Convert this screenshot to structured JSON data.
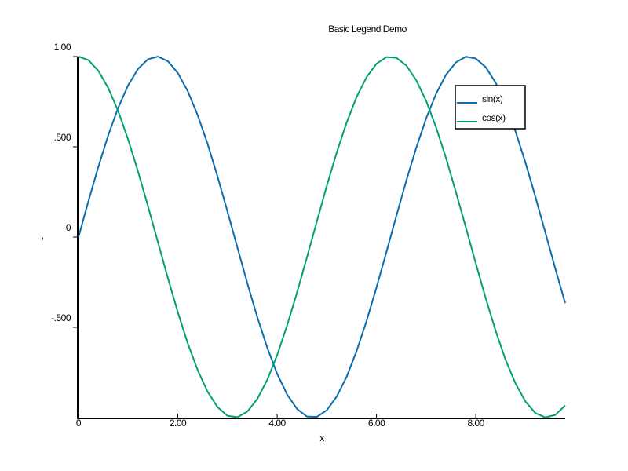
{
  "chart_data": {
    "type": "line",
    "title": "Basic Legend Demo",
    "xlabel": "x",
    "ylabel": ",",
    "x": [
      0,
      0.2,
      0.4,
      0.6,
      0.8,
      1.0,
      1.2,
      1.4,
      1.6,
      1.8,
      2.0,
      2.2,
      2.4,
      2.6,
      2.8,
      3.0,
      3.2,
      3.4,
      3.6,
      3.8,
      4.0,
      4.2,
      4.4,
      4.6,
      4.8,
      5.0,
      5.2,
      5.4,
      5.6,
      5.8,
      6.0,
      6.2,
      6.4,
      6.6,
      6.8,
      7.0,
      7.2,
      7.4,
      7.6,
      7.8,
      8.0,
      8.2,
      8.4,
      8.6,
      8.8,
      9.0,
      9.2,
      9.4,
      9.6,
      9.8
    ],
    "series": [
      {
        "name": "sin(x)",
        "color": "#0a6eab",
        "values": [
          0,
          0.199,
          0.389,
          0.565,
          0.717,
          0.841,
          0.932,
          0.985,
          1.0,
          0.974,
          0.909,
          0.808,
          0.675,
          0.516,
          0.335,
          0.141,
          -0.058,
          -0.256,
          -0.443,
          -0.612,
          -0.757,
          -0.872,
          -0.952,
          -0.994,
          -0.996,
          -0.959,
          -0.883,
          -0.773,
          -0.631,
          -0.465,
          -0.279,
          -0.083,
          0.117,
          0.312,
          0.494,
          0.657,
          0.794,
          0.899,
          0.968,
          0.999,
          0.989,
          0.941,
          0.855,
          0.735,
          0.585,
          0.412,
          0.223,
          0.025,
          -0.174,
          -0.366
        ]
      },
      {
        "name": "cos(x)",
        "color": "#00a070",
        "values": [
          1.0,
          0.98,
          0.921,
          0.825,
          0.697,
          0.54,
          0.362,
          0.17,
          -0.029,
          -0.227,
          -0.416,
          -0.589,
          -0.737,
          -0.857,
          -0.942,
          -0.99,
          -0.998,
          -0.967,
          -0.897,
          -0.791,
          -0.654,
          -0.49,
          -0.307,
          -0.112,
          0.087,
          0.284,
          0.469,
          0.635,
          0.776,
          0.886,
          0.96,
          0.997,
          0.993,
          0.951,
          0.869,
          0.754,
          0.608,
          0.438,
          0.249,
          0.053,
          -0.146,
          -0.339,
          -0.52,
          -0.68,
          -0.811,
          -0.911,
          -0.975,
          -0.999,
          -0.985,
          -0.933
        ]
      }
    ],
    "xlim": [
      0,
      9.8
    ],
    "ylim": [
      -1,
      1
    ],
    "xticks": [
      0,
      {
        "value": 2,
        "label": "2.00"
      },
      {
        "value": 4,
        "label": "4.00"
      },
      {
        "value": 6,
        "label": "6.00"
      },
      {
        "value": 8,
        "label": "8.00"
      }
    ],
    "yticks": [
      {
        "value": 1,
        "label": "1.00"
      },
      {
        "value": 0.5,
        "label": ".500"
      },
      0,
      {
        "value": -0.5,
        "label": "-.500"
      }
    ],
    "grid": false,
    "legend": "upper right"
  }
}
